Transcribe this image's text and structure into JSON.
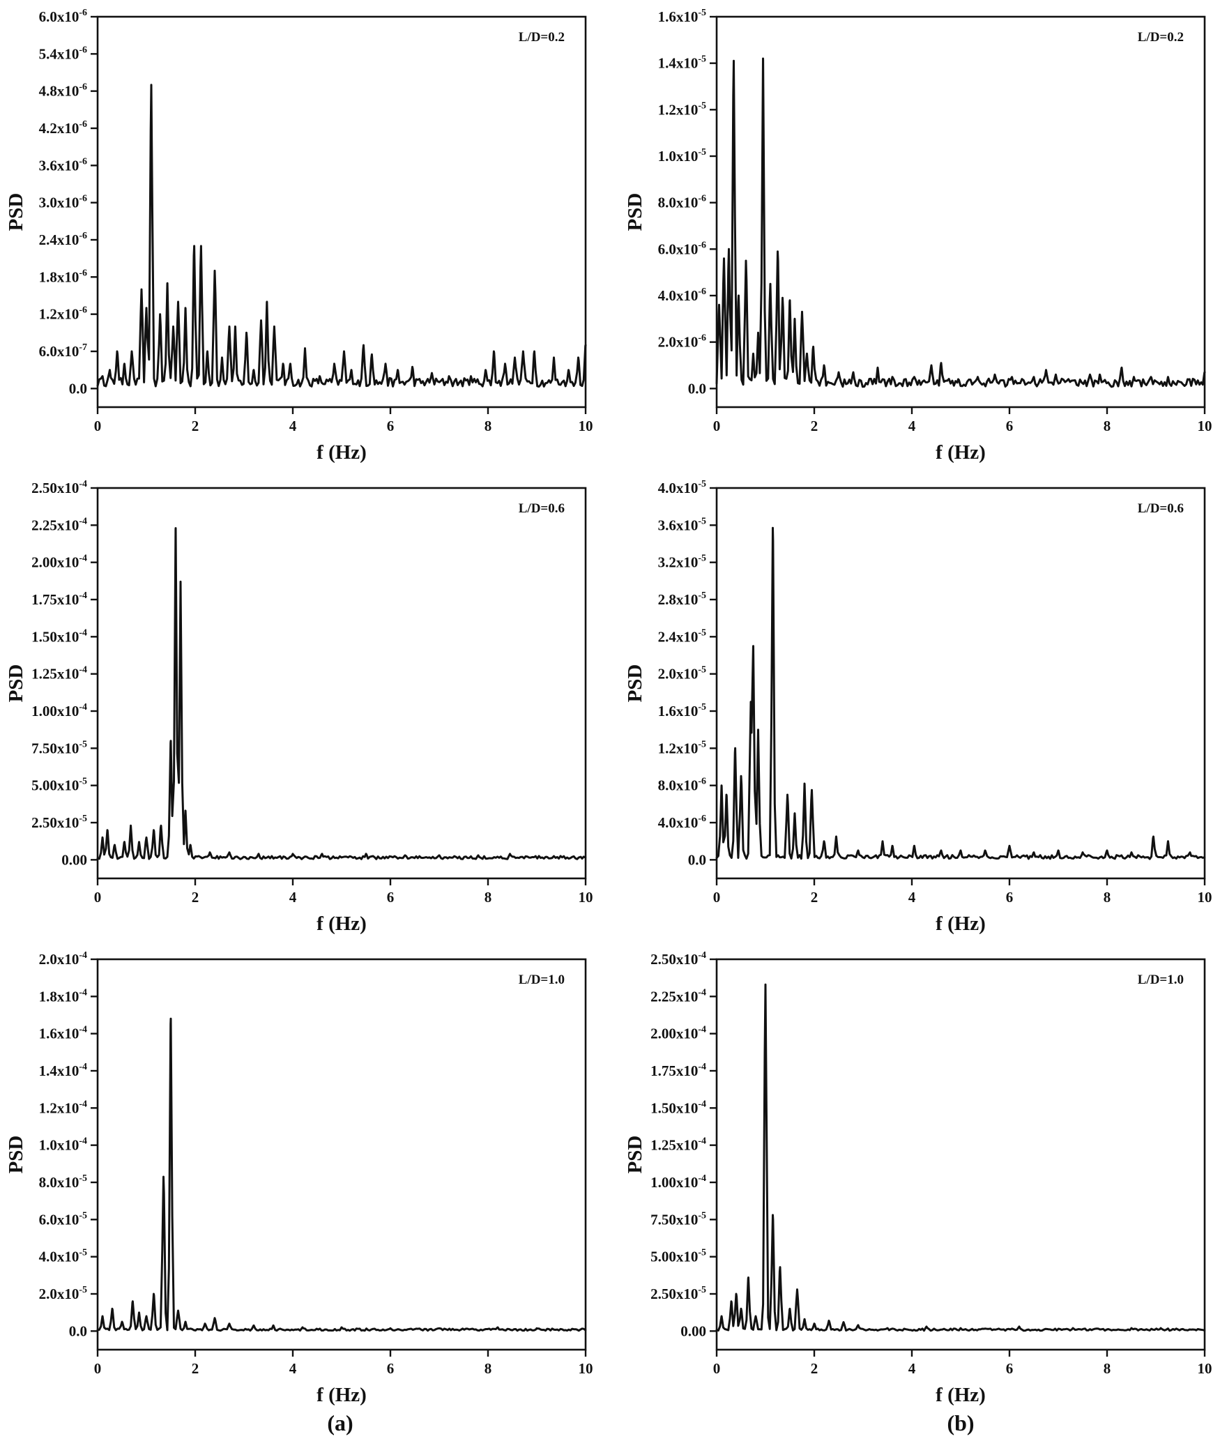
{
  "figure": {
    "panel_labels": [
      "(a)",
      "(b)"
    ]
  },
  "chart_data": [
    {
      "type": "line",
      "column": "a",
      "annotation": "L/D=0.2",
      "xlabel": "f (Hz)",
      "ylabel": "PSD",
      "xlim": [
        0,
        10
      ],
      "ylim": [
        0,
        6e-06
      ],
      "xticks": [
        "0",
        "2",
        "4",
        "6",
        "8",
        "10"
      ],
      "yticks": [
        {
          "value": 0,
          "mant": "0.0",
          "exp": ""
        },
        {
          "value": 6e-07,
          "mant": "6.0x10",
          "exp": "-7"
        },
        {
          "value": 1.2e-06,
          "mant": "1.2x10",
          "exp": "-6"
        },
        {
          "value": 1.8e-06,
          "mant": "1.8x10",
          "exp": "-6"
        },
        {
          "value": 2.4e-06,
          "mant": "2.4x10",
          "exp": "-6"
        },
        {
          "value": 3e-06,
          "mant": "3.0x10",
          "exp": "-6"
        },
        {
          "value": 3.6e-06,
          "mant": "3.6x10",
          "exp": "-6"
        },
        {
          "value": 4.2e-06,
          "mant": "4.2x10",
          "exp": "-6"
        },
        {
          "value": 4.8e-06,
          "mant": "4.8x10",
          "exp": "-6"
        },
        {
          "value": 5.4e-06,
          "mant": "5.4x10",
          "exp": "-6"
        },
        {
          "value": 6e-06,
          "mant": "6.0x10",
          "exp": "-6"
        }
      ],
      "peaks": [
        [
          0.1,
          2e-07
        ],
        [
          0.25,
          3e-07
        ],
        [
          0.4,
          6e-07
        ],
        [
          0.55,
          4e-07
        ],
        [
          0.7,
          6e-07
        ],
        [
          0.9,
          1.6e-06
        ],
        [
          1.0,
          1.3e-06
        ],
        [
          1.1,
          4.9e-06
        ],
        [
          1.28,
          1.2e-06
        ],
        [
          1.43,
          1.7e-06
        ],
        [
          1.55,
          1e-06
        ],
        [
          1.65,
          1.4e-06
        ],
        [
          1.8,
          1.3e-06
        ],
        [
          1.98,
          2.3e-06
        ],
        [
          2.12,
          2.3e-06
        ],
        [
          2.25,
          6e-07
        ],
        [
          2.4,
          1.9e-06
        ],
        [
          2.55,
          5e-07
        ],
        [
          2.7,
          1e-06
        ],
        [
          2.82,
          1e-06
        ],
        [
          3.05,
          9e-07
        ],
        [
          3.2,
          3e-07
        ],
        [
          3.35,
          1.1e-06
        ],
        [
          3.47,
          1.4e-06
        ],
        [
          3.62,
          1e-06
        ],
        [
          3.8,
          4e-07
        ],
        [
          3.95,
          4e-07
        ],
        [
          4.25,
          6.5e-07
        ],
        [
          4.55,
          2e-07
        ],
        [
          4.85,
          4e-07
        ],
        [
          5.05,
          6e-07
        ],
        [
          5.2,
          3e-07
        ],
        [
          5.45,
          7e-07
        ],
        [
          5.62,
          5.5e-07
        ],
        [
          5.9,
          4e-07
        ],
        [
          6.15,
          3e-07
        ],
        [
          6.45,
          3.5e-07
        ],
        [
          6.85,
          2.5e-07
        ],
        [
          7.2,
          2e-07
        ],
        [
          7.65,
          2e-07
        ],
        [
          7.95,
          3e-07
        ],
        [
          8.12,
          6e-07
        ],
        [
          8.35,
          4e-07
        ],
        [
          8.55,
          5e-07
        ],
        [
          8.72,
          6e-07
        ],
        [
          8.95,
          6e-07
        ],
        [
          9.35,
          5e-07
        ],
        [
          9.65,
          3e-07
        ],
        [
          9.85,
          5e-07
        ],
        [
          10.0,
          7e-07
        ]
      ],
      "noise": 1e-07
    },
    {
      "type": "line",
      "column": "b",
      "annotation": "L/D=0.2",
      "xlabel": "f (Hz)",
      "ylabel": "PSD",
      "xlim": [
        0,
        10
      ],
      "ylim": [
        0,
        1.6e-05
      ],
      "xticks": [
        "0",
        "2",
        "4",
        "6",
        "8",
        "10"
      ],
      "yticks": [
        {
          "value": 0,
          "mant": "0.0",
          "exp": ""
        },
        {
          "value": 2e-06,
          "mant": "2.0x10",
          "exp": "-6"
        },
        {
          "value": 4e-06,
          "mant": "4.0x10",
          "exp": "-6"
        },
        {
          "value": 6e-06,
          "mant": "6.0x10",
          "exp": "-6"
        },
        {
          "value": 8e-06,
          "mant": "8.0x10",
          "exp": "-6"
        },
        {
          "value": 1e-05,
          "mant": "1.0x10",
          "exp": "-5"
        },
        {
          "value": 1.2e-05,
          "mant": "1.2x10",
          "exp": "-5"
        },
        {
          "value": 1.4e-05,
          "mant": "1.4x10",
          "exp": "-5"
        },
        {
          "value": 1.6e-05,
          "mant": "1.6x10",
          "exp": "-5"
        }
      ],
      "peaks": [
        [
          0.05,
          3.6e-06
        ],
        [
          0.15,
          5.6e-06
        ],
        [
          0.25,
          6e-06
        ],
        [
          0.35,
          1.41e-05
        ],
        [
          0.45,
          4e-06
        ],
        [
          0.6,
          5.5e-06
        ],
        [
          0.75,
          1.5e-06
        ],
        [
          0.85,
          2.4e-06
        ],
        [
          0.95,
          1.42e-05
        ],
        [
          1.1,
          4.5e-06
        ],
        [
          1.25,
          5.9e-06
        ],
        [
          1.35,
          3.9e-06
        ],
        [
          1.5,
          3.8e-06
        ],
        [
          1.6,
          3e-06
        ],
        [
          1.75,
          3.3e-06
        ],
        [
          1.85,
          1.5e-06
        ],
        [
          1.98,
          1.8e-06
        ],
        [
          2.2,
          1e-06
        ],
        [
          2.5,
          7e-07
        ],
        [
          2.8,
          7e-07
        ],
        [
          3.3,
          9e-07
        ],
        [
          3.6,
          5e-07
        ],
        [
          4.05,
          5e-07
        ],
        [
          4.4,
          1e-06
        ],
        [
          4.6,
          1.1e-06
        ],
        [
          4.95,
          4e-07
        ],
        [
          5.35,
          5e-07
        ],
        [
          5.7,
          6e-07
        ],
        [
          6.05,
          5e-07
        ],
        [
          6.5,
          5e-07
        ],
        [
          6.75,
          8e-07
        ],
        [
          6.95,
          6e-07
        ],
        [
          7.65,
          6e-07
        ],
        [
          7.85,
          6e-07
        ],
        [
          8.3,
          9e-07
        ],
        [
          8.55,
          5e-07
        ],
        [
          8.9,
          5e-07
        ],
        [
          9.25,
          5e-07
        ],
        [
          9.65,
          4e-07
        ],
        [
          10.0,
          7e-07
        ]
      ],
      "noise": 2.5e-07
    },
    {
      "type": "line",
      "column": "a",
      "annotation": "L/D=0.6",
      "xlabel": "f (Hz)",
      "ylabel": "PSD",
      "xlim": [
        0,
        10
      ],
      "ylim": [
        0,
        0.00025
      ],
      "xticks": [
        "0",
        "2",
        "4",
        "6",
        "8",
        "10"
      ],
      "yticks": [
        {
          "value": 0,
          "mant": "0.00",
          "exp": ""
        },
        {
          "value": 2.5e-05,
          "mant": "2.50x10",
          "exp": "-5"
        },
        {
          "value": 5e-05,
          "mant": "5.00x10",
          "exp": "-5"
        },
        {
          "value": 7.5e-05,
          "mant": "7.50x10",
          "exp": "-5"
        },
        {
          "value": 0.0001,
          "mant": "1.00x10",
          "exp": "-4"
        },
        {
          "value": 0.000125,
          "mant": "1.25x10",
          "exp": "-4"
        },
        {
          "value": 0.00015,
          "mant": "1.50x10",
          "exp": "-4"
        },
        {
          "value": 0.000175,
          "mant": "1.75x10",
          "exp": "-4"
        },
        {
          "value": 0.0002,
          "mant": "2.00x10",
          "exp": "-4"
        },
        {
          "value": 0.000225,
          "mant": "2.25x10",
          "exp": "-4"
        },
        {
          "value": 0.00025,
          "mant": "2.50x10",
          "exp": "-4"
        }
      ],
      "peaks": [
        [
          0.1,
          1.5e-05
        ],
        [
          0.2,
          2e-05
        ],
        [
          0.35,
          1e-05
        ],
        [
          0.55,
          1.2e-05
        ],
        [
          0.68,
          2.3e-05
        ],
        [
          0.85,
          1.2e-05
        ],
        [
          1.0,
          1.5e-05
        ],
        [
          1.15,
          2e-05
        ],
        [
          1.3,
          2.3e-05
        ],
        [
          1.5,
          8e-05
        ],
        [
          1.6,
          0.000223
        ],
        [
          1.7,
          0.000187
        ],
        [
          1.8,
          3.3e-05
        ],
        [
          1.9,
          1e-05
        ],
        [
          2.3,
          5e-06
        ],
        [
          2.7,
          5e-06
        ],
        [
          3.3,
          4e-06
        ],
        [
          4.0,
          4e-06
        ],
        [
          4.6,
          4e-06
        ],
        [
          5.5,
          4e-06
        ],
        [
          6.3,
          3e-06
        ],
        [
          7.0,
          3e-06
        ],
        [
          7.8,
          3e-06
        ],
        [
          8.45,
          4e-06
        ],
        [
          9.2,
          2e-06
        ],
        [
          9.9,
          2e-06
        ]
      ],
      "noise": 1.5e-06
    },
    {
      "type": "line",
      "column": "b",
      "annotation": "L/D=0.6",
      "xlabel": "f (Hz)",
      "ylabel": "PSD",
      "xlim": [
        0,
        10
      ],
      "ylim": [
        0,
        4e-05
      ],
      "xticks": [
        "0",
        "2",
        "4",
        "6",
        "8",
        "10"
      ],
      "yticks": [
        {
          "value": 0,
          "mant": "0.0",
          "exp": ""
        },
        {
          "value": 4e-06,
          "mant": "4.0x10",
          "exp": "-6"
        },
        {
          "value": 8e-06,
          "mant": "8.0x10",
          "exp": "-6"
        },
        {
          "value": 1.2e-05,
          "mant": "1.2x10",
          "exp": "-5"
        },
        {
          "value": 1.6e-05,
          "mant": "1.6x10",
          "exp": "-5"
        },
        {
          "value": 2e-05,
          "mant": "2.0x10",
          "exp": "-5"
        },
        {
          "value": 2.4e-05,
          "mant": "2.4x10",
          "exp": "-5"
        },
        {
          "value": 2.8e-05,
          "mant": "2.8x10",
          "exp": "-5"
        },
        {
          "value": 3.2e-05,
          "mant": "3.2x10",
          "exp": "-5"
        },
        {
          "value": 3.6e-05,
          "mant": "3.6x10",
          "exp": "-5"
        },
        {
          "value": 4e-05,
          "mant": "4.0x10",
          "exp": "-5"
        }
      ],
      "peaks": [
        [
          0.1,
          8e-06
        ],
        [
          0.2,
          7e-06
        ],
        [
          0.38,
          1.2e-05
        ],
        [
          0.5,
          9e-06
        ],
        [
          0.7,
          1.7e-05
        ],
        [
          0.75,
          2.3e-05
        ],
        [
          0.85,
          1.4e-05
        ],
        [
          1.15,
          3.57e-05
        ],
        [
          1.45,
          7e-06
        ],
        [
          1.6,
          5e-06
        ],
        [
          1.8,
          8.2e-06
        ],
        [
          1.95,
          7.5e-06
        ],
        [
          2.2,
          2e-06
        ],
        [
          2.45,
          2.5e-06
        ],
        [
          2.9,
          1e-06
        ],
        [
          3.4,
          2e-06
        ],
        [
          3.6,
          1.5e-06
        ],
        [
          4.05,
          1.5e-06
        ],
        [
          4.6,
          1e-06
        ],
        [
          5.0,
          1e-06
        ],
        [
          5.5,
          1e-06
        ],
        [
          6.0,
          1.5e-06
        ],
        [
          6.5,
          8e-07
        ],
        [
          7.0,
          1e-06
        ],
        [
          7.5,
          8e-07
        ],
        [
          8.0,
          1e-06
        ],
        [
          8.5,
          8e-07
        ],
        [
          8.95,
          2.5e-06
        ],
        [
          9.25,
          2e-06
        ],
        [
          9.7,
          8e-07
        ]
      ],
      "noise": 3e-07
    },
    {
      "type": "line",
      "column": "a",
      "annotation": "L/D=1.0",
      "xlabel": "f (Hz)",
      "ylabel": "PSD",
      "xlim": [
        0,
        10
      ],
      "ylim": [
        0,
        0.0002
      ],
      "xticks": [
        "0",
        "2",
        "4",
        "6",
        "8",
        "10"
      ],
      "yticks": [
        {
          "value": 0,
          "mant": "0.0",
          "exp": ""
        },
        {
          "value": 2e-05,
          "mant": "2.0x10",
          "exp": "-5"
        },
        {
          "value": 4e-05,
          "mant": "4.0x10",
          "exp": "-5"
        },
        {
          "value": 6e-05,
          "mant": "6.0x10",
          "exp": "-5"
        },
        {
          "value": 8e-05,
          "mant": "8.0x10",
          "exp": "-5"
        },
        {
          "value": 0.0001,
          "mant": "1.0x10",
          "exp": "-4"
        },
        {
          "value": 0.00012,
          "mant": "1.2x10",
          "exp": "-4"
        },
        {
          "value": 0.00014,
          "mant": "1.4x10",
          "exp": "-4"
        },
        {
          "value": 0.00016,
          "mant": "1.6x10",
          "exp": "-4"
        },
        {
          "value": 0.00018,
          "mant": "1.8x10",
          "exp": "-4"
        },
        {
          "value": 0.0002,
          "mant": "2.0x10",
          "exp": "-4"
        }
      ],
      "peaks": [
        [
          0.1,
          8e-06
        ],
        [
          0.3,
          1.2e-05
        ],
        [
          0.5,
          5e-06
        ],
        [
          0.72,
          1.6e-05
        ],
        [
          0.85,
          1e-05
        ],
        [
          1.0,
          8e-06
        ],
        [
          1.15,
          2e-05
        ],
        [
          1.35,
          8.3e-05
        ],
        [
          1.5,
          0.000168
        ],
        [
          1.65,
          1.1e-05
        ],
        [
          1.8,
          5e-06
        ],
        [
          2.2,
          4e-06
        ],
        [
          2.4,
          7e-06
        ],
        [
          2.7,
          4e-06
        ],
        [
          3.2,
          3e-06
        ],
        [
          3.6,
          3e-06
        ],
        [
          4.2,
          2e-06
        ],
        [
          5.0,
          2e-06
        ],
        [
          6.0,
          1.5e-06
        ],
        [
          7.0,
          1.5e-06
        ],
        [
          8.2,
          2e-06
        ],
        [
          9.0,
          1.5e-06
        ],
        [
          9.8,
          1e-06
        ]
      ],
      "noise": 8e-07
    },
    {
      "type": "line",
      "column": "b",
      "annotation": "L/D=1.0",
      "xlabel": "f (Hz)",
      "ylabel": "PSD",
      "xlim": [
        0,
        10
      ],
      "ylim": [
        0,
        0.00025
      ],
      "xticks": [
        "0",
        "2",
        "4",
        "6",
        "8",
        "10"
      ],
      "yticks": [
        {
          "value": 0,
          "mant": "0.00",
          "exp": ""
        },
        {
          "value": 2.5e-05,
          "mant": "2.50x10",
          "exp": "-5"
        },
        {
          "value": 5e-05,
          "mant": "5.00x10",
          "exp": "-5"
        },
        {
          "value": 7.5e-05,
          "mant": "7.50x10",
          "exp": "-5"
        },
        {
          "value": 0.0001,
          "mant": "1.00x10",
          "exp": "-4"
        },
        {
          "value": 0.000125,
          "mant": "1.25x10",
          "exp": "-4"
        },
        {
          "value": 0.00015,
          "mant": "1.50x10",
          "exp": "-4"
        },
        {
          "value": 0.000175,
          "mant": "1.75x10",
          "exp": "-4"
        },
        {
          "value": 0.0002,
          "mant": "2.00x10",
          "exp": "-4"
        },
        {
          "value": 0.000225,
          "mant": "2.25x10",
          "exp": "-4"
        },
        {
          "value": 0.00025,
          "mant": "2.50x10",
          "exp": "-4"
        }
      ],
      "peaks": [
        [
          0.1,
          1e-05
        ],
        [
          0.3,
          2e-05
        ],
        [
          0.4,
          2.5e-05
        ],
        [
          0.5,
          1.5e-05
        ],
        [
          0.65,
          3.6e-05
        ],
        [
          0.8,
          1e-05
        ],
        [
          1.0,
          0.000233
        ],
        [
          1.15,
          7.8e-05
        ],
        [
          1.3,
          4.3e-05
        ],
        [
          1.5,
          1.5e-05
        ],
        [
          1.65,
          2.8e-05
        ],
        [
          1.8,
          8e-06
        ],
        [
          2.0,
          5e-06
        ],
        [
          2.3,
          7e-06
        ],
        [
          2.6,
          6e-06
        ],
        [
          2.9,
          4e-06
        ],
        [
          3.5,
          2e-06
        ],
        [
          4.3,
          3e-06
        ],
        [
          5.0,
          2e-06
        ],
        [
          6.2,
          3e-06
        ],
        [
          7.3,
          2e-06
        ],
        [
          8.5,
          2e-06
        ],
        [
          9.1,
          2e-06
        ],
        [
          9.8,
          1e-06
        ]
      ],
      "noise": 1e-06
    }
  ]
}
